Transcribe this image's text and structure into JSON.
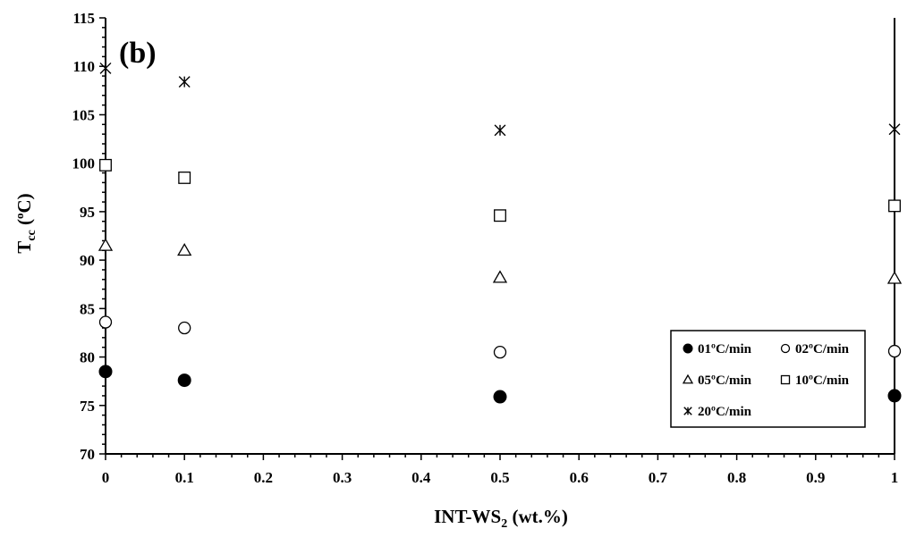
{
  "chart_data": {
    "type": "scatter",
    "panel_label": "(b)",
    "xlabel": {
      "main": "INT-WS",
      "sub": "2",
      "suffix": " (wt.%)"
    },
    "ylabel": {
      "main": "T",
      "sub": "cc",
      "open": " (",
      "sup": "o",
      "suffix": "C)"
    },
    "xlim": [
      0,
      1
    ],
    "ylim": [
      70,
      115
    ],
    "x_ticks": [
      {
        "value": 0,
        "label": "0"
      },
      {
        "value": 0.1,
        "label": "0.1"
      },
      {
        "value": 0.2,
        "label": "0.2"
      },
      {
        "value": 0.3,
        "label": "0.3"
      },
      {
        "value": 0.4,
        "label": "0.4"
      },
      {
        "value": 0.5,
        "label": "0.5"
      },
      {
        "value": 0.6,
        "label": "0.6"
      },
      {
        "value": 0.7,
        "label": "0.7"
      },
      {
        "value": 0.8,
        "label": "0.8"
      },
      {
        "value": 0.9,
        "label": "0.9"
      },
      {
        "value": 1,
        "label": "1"
      }
    ],
    "y_ticks": [
      {
        "value": 70,
        "label": "70"
      },
      {
        "value": 75,
        "label": "75"
      },
      {
        "value": 80,
        "label": "80"
      },
      {
        "value": 85,
        "label": "85"
      },
      {
        "value": 90,
        "label": "90"
      },
      {
        "value": 95,
        "label": "95"
      },
      {
        "value": 100,
        "label": "100"
      },
      {
        "value": 105,
        "label": "105"
      },
      {
        "value": 110,
        "label": "110"
      },
      {
        "value": 115,
        "label": "115"
      }
    ],
    "x": [
      0,
      0.1,
      0.5,
      1
    ],
    "series": [
      {
        "name": "01ºC/min",
        "marker": "filled-circle",
        "values": [
          78.5,
          77.6,
          75.9,
          76.0
        ]
      },
      {
        "name": "02ºC/min",
        "marker": "open-circle",
        "values": [
          83.6,
          83.0,
          80.5,
          80.6
        ]
      },
      {
        "name": "05ºC/min",
        "marker": "open-triangle",
        "values": [
          91.5,
          91.0,
          88.2,
          88.1
        ]
      },
      {
        "name": "10ºC/min",
        "marker": "open-square",
        "values": [
          99.8,
          98.5,
          94.6,
          95.6
        ]
      },
      {
        "name": "20ºC/min",
        "marker": "asterisk",
        "values": [
          109.8,
          108.4,
          103.4,
          103.5
        ]
      }
    ],
    "legend_position": "bottom-right",
    "grid": false
  }
}
